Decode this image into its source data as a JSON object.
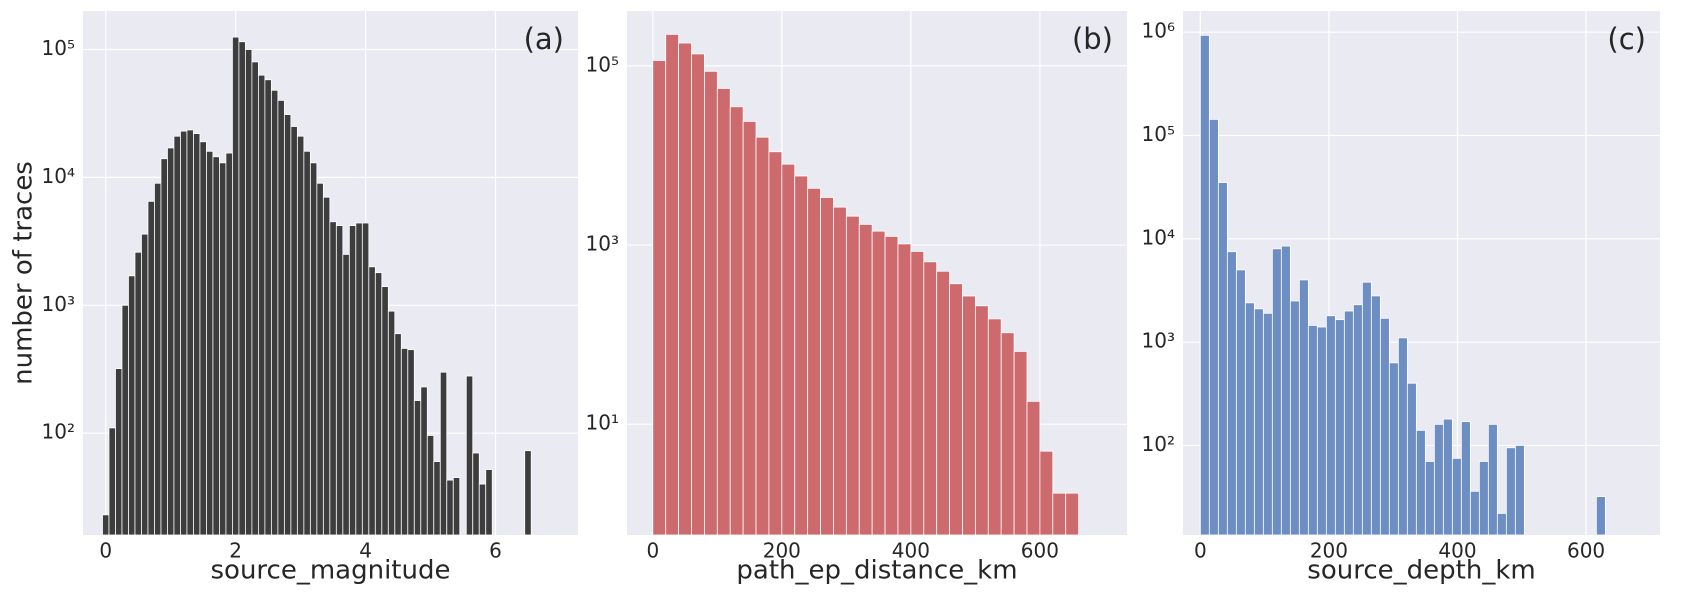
{
  "chart_data": [
    {
      "type": "histogram",
      "annotation": "(a)",
      "xlabel": "source_magnitude",
      "ylabel": "number of traces",
      "color": "#3d3d3d",
      "log_y": true,
      "grid": true,
      "bins": [
        -0.05,
        0.05,
        0.15,
        0.25,
        0.35,
        0.45,
        0.55,
        0.65,
        0.75,
        0.85,
        0.95,
        1.05,
        1.15,
        1.25,
        1.35,
        1.45,
        1.55,
        1.65,
        1.75,
        1.85,
        1.95,
        2.05,
        2.15,
        2.25,
        2.35,
        2.45,
        2.55,
        2.65,
        2.75,
        2.85,
        2.95,
        3.05,
        3.15,
        3.25,
        3.35,
        3.45,
        3.55,
        3.65,
        3.75,
        3.85,
        3.95,
        4.05,
        4.15,
        4.25,
        4.35,
        4.45,
        4.55,
        4.65,
        4.75,
        4.85,
        4.95,
        5.05,
        5.15,
        5.25,
        5.35,
        5.45,
        5.55,
        5.65,
        5.75,
        5.85,
        5.95,
        6.05,
        6.15,
        6.25,
        6.35,
        6.45,
        6.55
      ],
      "values": [
        23,
        110,
        320,
        1000,
        1700,
        2600,
        3600,
        6500,
        9000,
        14000,
        17000,
        21000,
        23000,
        23500,
        22000,
        19000,
        16000,
        14500,
        13000,
        15500,
        125000,
        115000,
        100000,
        80000,
        63000,
        58000,
        48000,
        40000,
        31000,
        25000,
        21000,
        16000,
        13000,
        9000,
        7000,
        4500,
        4200,
        2500,
        4200,
        4400,
        4400,
        2000,
        1800,
        1400,
        900,
        600,
        460,
        450,
        180,
        230,
        96,
        60,
        300,
        43,
        45,
        0,
        280,
        70,
        40,
        52,
        0,
        0,
        0,
        0,
        0,
        73
      ],
      "xlim": [
        -0.35,
        7.27
      ],
      "xticks": [
        0,
        2,
        4,
        6
      ],
      "ylim": [
        16,
        200000
      ],
      "yticks": [
        {
          "value": 100,
          "label": "10²"
        },
        {
          "value": 1000,
          "label": "10³"
        },
        {
          "value": 10000,
          "label": "10⁴"
        },
        {
          "value": 100000,
          "label": "10⁵"
        }
      ]
    },
    {
      "type": "histogram",
      "annotation": "(b)",
      "xlabel": "path_ep_distance_km",
      "color": "#cc6a6e",
      "log_y": true,
      "grid": true,
      "bins": [
        0,
        20,
        40,
        60,
        80,
        100,
        120,
        140,
        160,
        180,
        200,
        220,
        240,
        260,
        280,
        300,
        320,
        340,
        360,
        380,
        400,
        420,
        440,
        460,
        480,
        500,
        520,
        540,
        560,
        580,
        600,
        620,
        640,
        660
      ],
      "values": [
        115000,
        225000,
        180000,
        136000,
        87000,
        56000,
        35000,
        24000,
        16000,
        11000,
        8000,
        5900,
        4300,
        3400,
        2650,
        2100,
        1700,
        1430,
        1250,
        1030,
        850,
        650,
        510,
        370,
        270,
        210,
        150,
        105,
        65,
        18,
        5,
        1.7,
        1.7
      ],
      "xlim": [
        -40,
        735
      ],
      "xticks": [
        0,
        200,
        400,
        600
      ],
      "ylim": [
        0.58,
        410000
      ],
      "yticks": [
        {
          "value": 10,
          "label": "10¹"
        },
        {
          "value": 1000,
          "label": "10³"
        },
        {
          "value": 100000,
          "label": "10⁵"
        }
      ]
    },
    {
      "type": "histogram",
      "annotation": "(c)",
      "xlabel": "source_depth_km",
      "color": "#6d8ec2",
      "log_y": true,
      "grid": true,
      "bins": [
        0,
        14,
        28,
        42,
        56,
        70,
        84,
        98,
        112,
        126,
        140,
        154,
        168,
        182,
        196,
        210,
        224,
        238,
        252,
        266,
        280,
        294,
        308,
        322,
        336,
        350,
        364,
        378,
        392,
        406,
        420,
        434,
        448,
        462,
        476,
        490,
        504,
        518,
        532,
        546,
        560,
        574,
        588,
        602,
        616,
        630
      ],
      "values": [
        930000,
        143000,
        35000,
        7500,
        5000,
        2400,
        2100,
        1900,
        8000,
        8500,
        2500,
        4000,
        1450,
        1400,
        1800,
        1650,
        2000,
        2300,
        3800,
        2800,
        1700,
        630,
        1100,
        400,
        140,
        70,
        160,
        180,
        75,
        170,
        36,
        70,
        160,
        22,
        95,
        100,
        0,
        0,
        0,
        0,
        0,
        0,
        0,
        0,
        32
      ],
      "xlim": [
        -27,
        715
      ],
      "xticks": [
        0,
        200,
        400,
        600
      ],
      "ylim": [
        13.6,
        1600000
      ],
      "yticks": [
        {
          "value": 100,
          "label": "10²"
        },
        {
          "value": 1000,
          "label": "10³"
        },
        {
          "value": 10000,
          "label": "10⁴"
        },
        {
          "value": 100000,
          "label": "10⁵"
        },
        {
          "value": 1000000,
          "label": "10⁶"
        }
      ]
    }
  ]
}
